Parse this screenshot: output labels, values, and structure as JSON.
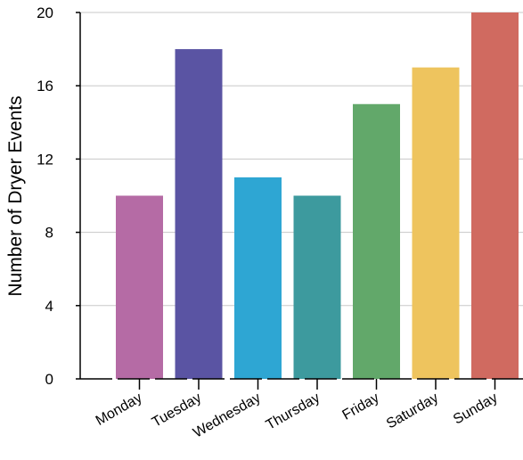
{
  "chart_data": {
    "type": "bar",
    "title": "",
    "xlabel": "",
    "ylabel": "Number of Dryer Events",
    "categories": [
      "Monday",
      "Tuesday",
      "Wednesday",
      "Thursday",
      "Friday",
      "Saturday",
      "Sunday"
    ],
    "values": [
      10,
      18,
      11,
      10,
      15,
      17,
      20
    ],
    "colors": [
      "#b56ba5",
      "#5a54a3",
      "#2ea6d3",
      "#3d9a9e",
      "#62a86a",
      "#eec45e",
      "#d06a60"
    ],
    "ylim": [
      0,
      20
    ],
    "yticks": [
      0,
      4,
      8,
      12,
      16,
      20
    ],
    "grid": true,
    "legend": "none"
  }
}
